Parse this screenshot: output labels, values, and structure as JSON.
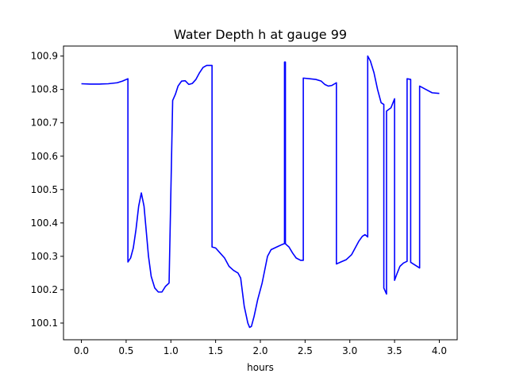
{
  "chart_data": {
    "type": "line",
    "title": "Water Depth h at gauge 99",
    "xlabel": "hours",
    "ylabel": "",
    "xlim": [
      -0.2,
      4.2
    ],
    "ylim": [
      100.05,
      100.93
    ],
    "xticks": [
      0.0,
      0.5,
      1.0,
      1.5,
      2.0,
      2.5,
      3.0,
      3.5,
      4.0
    ],
    "xtick_labels": [
      "0.0",
      "0.5",
      "1.0",
      "1.5",
      "2.0",
      "2.5",
      "3.0",
      "3.5",
      "4.0"
    ],
    "yticks": [
      100.1,
      100.2,
      100.3,
      100.4,
      100.5,
      100.6,
      100.7,
      100.8,
      100.9
    ],
    "ytick_labels": [
      "100.1",
      "100.2",
      "100.3",
      "100.4",
      "100.5",
      "100.6",
      "100.7",
      "100.8",
      "100.9"
    ],
    "grid": false,
    "series": [
      {
        "color": "#0000ff",
        "x": [
          0.0,
          0.1,
          0.2,
          0.3,
          0.4,
          0.46,
          0.52,
          0.52,
          0.55,
          0.58,
          0.61,
          0.64,
          0.67,
          0.7,
          0.72,
          0.75,
          0.78,
          0.82,
          0.86,
          0.9,
          0.94,
          0.98,
          1.02,
          1.02,
          1.05,
          1.08,
          1.12,
          1.16,
          1.2,
          1.24,
          1.28,
          1.32,
          1.36,
          1.4,
          1.43,
          1.46,
          1.46,
          1.5,
          1.55,
          1.6,
          1.65,
          1.7,
          1.75,
          1.78,
          1.82,
          1.86,
          1.88,
          1.9,
          1.93,
          1.97,
          2.02,
          2.08,
          2.12,
          2.16,
          2.2,
          2.24,
          2.27,
          2.27,
          2.28,
          2.28,
          2.29,
          2.32,
          2.36,
          2.4,
          2.45,
          2.48,
          2.48,
          2.55,
          2.62,
          2.68,
          2.72,
          2.76,
          2.8,
          2.85,
          2.85,
          2.9,
          2.96,
          3.02,
          3.06,
          3.1,
          3.14,
          3.17,
          3.2,
          3.2,
          3.23,
          3.27,
          3.31,
          3.35,
          3.38,
          3.38,
          3.41,
          3.41,
          3.46,
          3.5,
          3.5,
          3.53,
          3.56,
          3.6,
          3.64,
          3.64,
          3.68,
          3.68,
          3.78,
          3.78,
          3.85,
          3.92,
          4.0
        ],
        "y": [
          100.817,
          100.816,
          100.816,
          100.817,
          100.82,
          100.825,
          100.832,
          100.283,
          100.295,
          100.325,
          100.38,
          100.45,
          100.49,
          100.45,
          100.39,
          100.3,
          100.24,
          100.205,
          100.193,
          100.193,
          100.21,
          100.22,
          100.767,
          100.767,
          100.785,
          100.81,
          100.825,
          100.826,
          100.815,
          100.818,
          100.83,
          100.85,
          100.866,
          100.872,
          100.872,
          100.872,
          100.328,
          100.325,
          100.31,
          100.295,
          100.27,
          100.258,
          100.25,
          100.235,
          100.15,
          100.1,
          100.087,
          100.09,
          100.12,
          100.17,
          100.22,
          100.3,
          100.32,
          100.325,
          100.33,
          100.335,
          100.338,
          100.882,
          100.882,
          100.338,
          100.335,
          100.328,
          100.31,
          100.295,
          100.288,
          100.288,
          100.834,
          100.832,
          100.83,
          100.825,
          100.815,
          100.81,
          100.812,
          100.82,
          100.277,
          100.283,
          100.29,
          100.305,
          100.325,
          100.345,
          100.36,
          100.365,
          100.358,
          100.9,
          100.885,
          100.85,
          100.8,
          100.76,
          100.755,
          100.205,
          100.187,
          100.735,
          100.745,
          100.772,
          100.228,
          100.25,
          100.27,
          100.28,
          100.285,
          100.832,
          100.83,
          100.282,
          100.265,
          100.81,
          100.8,
          100.79,
          100.788
        ]
      }
    ]
  }
}
